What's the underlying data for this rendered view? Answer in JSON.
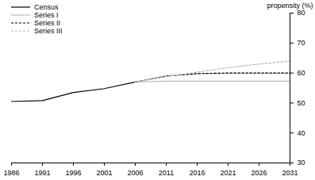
{
  "chart_data": {
    "type": "line",
    "x": [
      1986,
      1991,
      1996,
      2001,
      2006,
      2011,
      2016,
      2021,
      2026,
      2031
    ],
    "xlim": [
      1986,
      2031
    ],
    "xticks": [
      1986,
      1991,
      1996,
      2001,
      2006,
      2011,
      2016,
      2021,
      2026,
      2031
    ],
    "y_label": "propensity (%)",
    "ylim": [
      30,
      80
    ],
    "yticks": [
      30,
      40,
      50,
      60,
      70,
      80
    ],
    "legend": "top-left",
    "series": [
      {
        "name": "Census",
        "color": "#000000",
        "line_style": "solid",
        "values": [
          50.5,
          50.8,
          53.5,
          54.8,
          57.0,
          null,
          null,
          null,
          null,
          null
        ]
      },
      {
        "name": "Series I",
        "color": "#bbbbbb",
        "line_style": "solid",
        "values": [
          null,
          null,
          null,
          null,
          57.0,
          57.3,
          57.3,
          57.3,
          57.3,
          57.3
        ]
      },
      {
        "name": "Series II",
        "color": "#000000",
        "line_style": "dashed",
        "values": [
          null,
          null,
          null,
          null,
          57.0,
          59.0,
          59.8,
          60.0,
          60.0,
          60.0
        ]
      },
      {
        "name": "Series III",
        "color": "#bbbbbb",
        "line_style": "dashed",
        "values": [
          null,
          null,
          null,
          null,
          57.0,
          58.8,
          60.3,
          61.8,
          63.0,
          64.0
        ]
      }
    ]
  }
}
